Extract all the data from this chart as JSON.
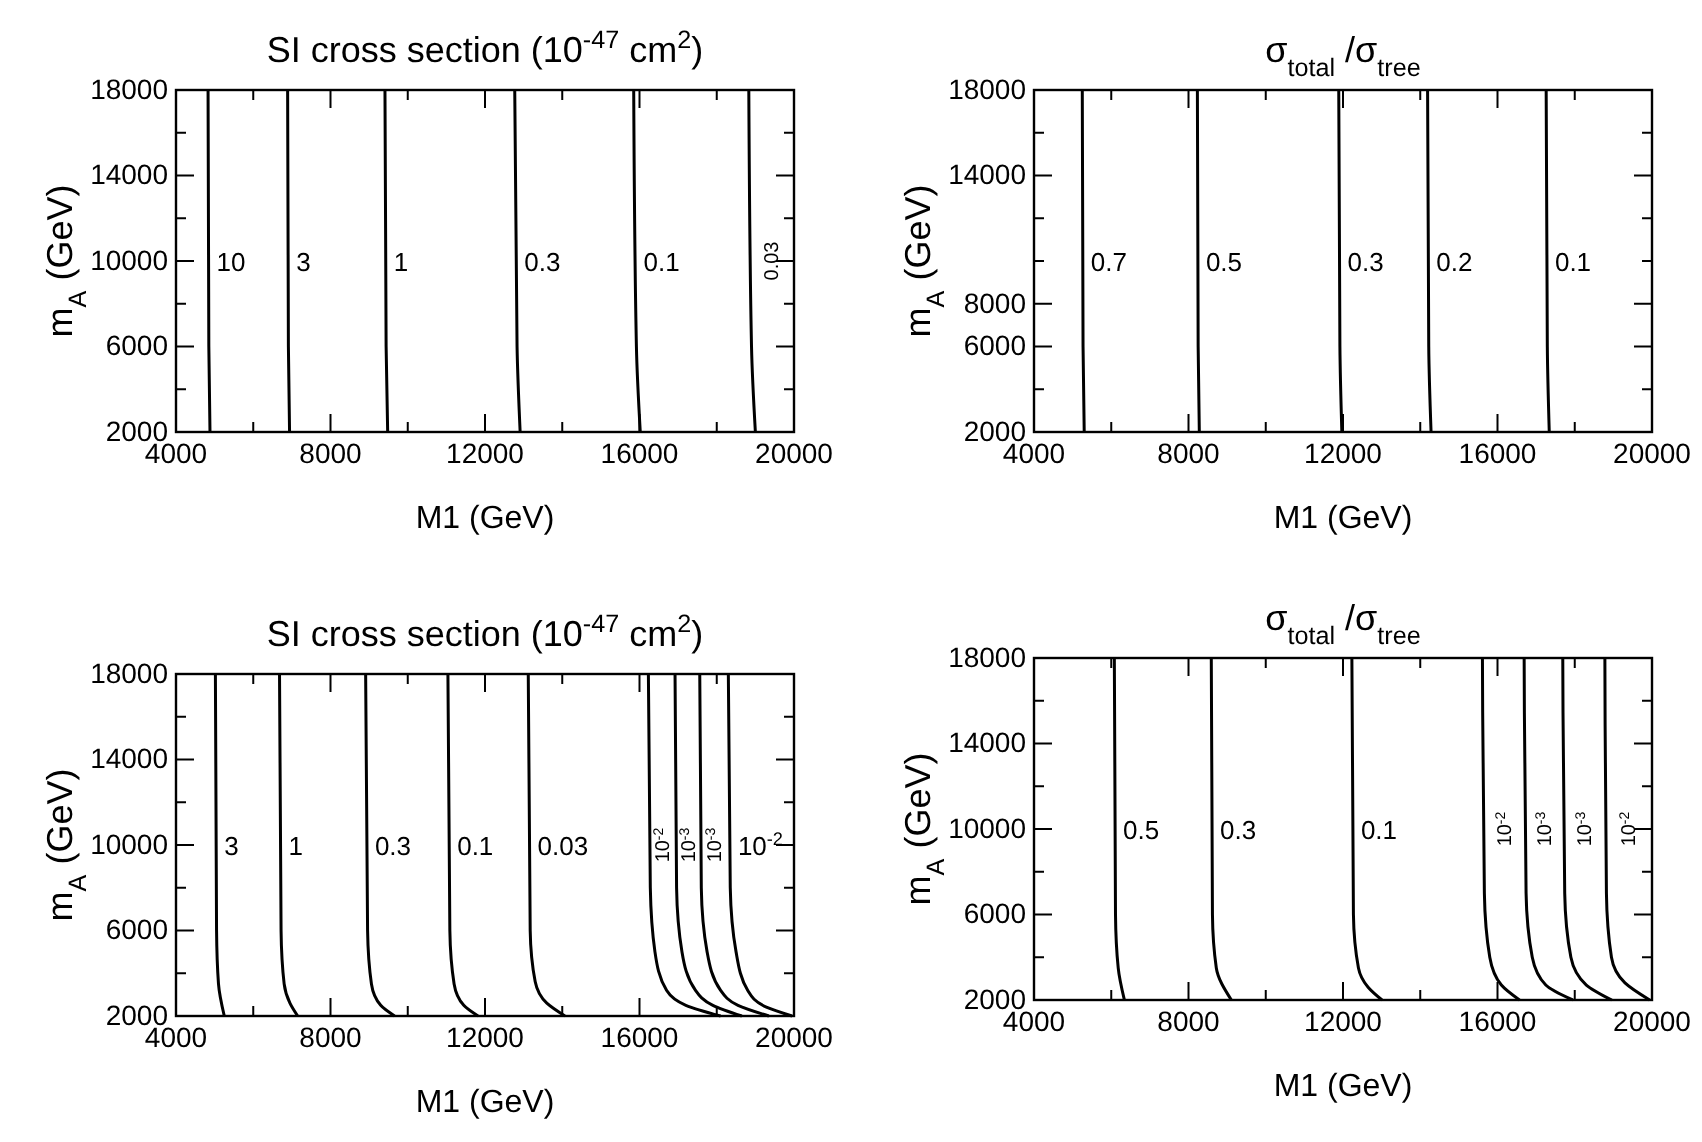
{
  "chart_data": [
    {
      "type": "line",
      "title": "SI cross section (10$^{-47}$ cm$^{2}$)",
      "xlabel": "M1 (GeV)",
      "ylabel": "m$_{A}$ (GeV)",
      "xlim": [
        4000,
        20000
      ],
      "ylim": [
        2000,
        18000
      ],
      "xticks": [
        4000,
        {
          "value": 6000,
          "label": null
        },
        8000,
        {
          "value": 10000,
          "label": null
        },
        12000,
        {
          "value": 14000,
          "label": null
        },
        16000,
        {
          "value": 18000,
          "label": null
        },
        20000
      ],
      "yticks": [
        2000,
        {
          "value": 4000,
          "label": null
        },
        6000,
        {
          "value": 8000,
          "label": null
        },
        10000,
        {
          "value": 12000,
          "label": null
        },
        14000,
        {
          "value": 16000,
          "label": null
        },
        18000
      ],
      "series": [
        {
          "name": "10",
          "color": "#000000",
          "x": [
            4830,
            4850,
            4880
          ],
          "values": [
            18000,
            6000,
            2000
          ]
        },
        {
          "name": "3",
          "color": "#000000",
          "x": [
            6890,
            6910,
            6940
          ],
          "values": [
            18000,
            6000,
            2000
          ]
        },
        {
          "name": "1",
          "color": "#000000",
          "x": [
            9410,
            9440,
            9480
          ],
          "values": [
            18000,
            6000,
            2000
          ]
        },
        {
          "name": "0.3",
          "color": "#000000",
          "x": [
            12770,
            12830,
            12910
          ],
          "values": [
            18000,
            6000,
            2000
          ]
        },
        {
          "name": "0.1",
          "color": "#000000",
          "x": [
            15850,
            15920,
            16020
          ],
          "values": [
            18000,
            6000,
            2000
          ]
        },
        {
          "name": "0.03",
          "color": "#000000",
          "x": [
            18830,
            18900,
            19000
          ],
          "values": [
            18000,
            6000,
            2000
          ]
        }
      ]
    },
    {
      "type": "line",
      "title": "σ$_{total}$ /σ$_{tree}$",
      "xlabel": "M1 (GeV)",
      "ylabel": "m$_{A}$ (GeV)",
      "xlim": [
        4000,
        20000
      ],
      "ylim": [
        2000,
        18000
      ],
      "xticks": [
        4000,
        {
          "value": 6000,
          "label": null
        },
        8000,
        {
          "value": 10000,
          "label": null
        },
        12000,
        {
          "value": 14000,
          "label": null
        },
        16000,
        {
          "value": 18000,
          "label": null
        },
        20000
      ],
      "yticks": [
        2000,
        {
          "value": 4000,
          "label": null
        },
        6000,
        8000,
        {
          "value": 10000,
          "label": null
        },
        {
          "value": 12000,
          "label": null
        },
        14000,
        {
          "value": 16000,
          "label": null
        },
        18000
      ],
      "series": [
        {
          "name": "0.7",
          "color": "#000000",
          "x": [
            5250,
            5270,
            5300
          ],
          "values": [
            18000,
            6000,
            2000
          ]
        },
        {
          "name": "0.5",
          "color": "#000000",
          "x": [
            8230,
            8250,
            8280
          ],
          "values": [
            18000,
            6000,
            2000
          ]
        },
        {
          "name": "0.3",
          "color": "#000000",
          "x": [
            11890,
            11920,
            11970
          ],
          "values": [
            18000,
            6000,
            2000
          ]
        },
        {
          "name": "0.2",
          "color": "#000000",
          "x": [
            14190,
            14220,
            14280
          ],
          "values": [
            18000,
            6000,
            2000
          ]
        },
        {
          "name": "0.1",
          "color": "#000000",
          "x": [
            17260,
            17290,
            17340
          ],
          "values": [
            18000,
            6000,
            2000
          ]
        }
      ]
    },
    {
      "type": "line",
      "title": "SI cross section (10$^{-47}$ cm$^{2}$)",
      "xlabel": "M1 (GeV)",
      "ylabel": "m$_{A}$ (GeV)",
      "xlim": [
        4000,
        20000
      ],
      "ylim": [
        2000,
        18000
      ],
      "xticks": [
        4000,
        {
          "value": 6000,
          "label": null
        },
        8000,
        {
          "value": 10000,
          "label": null
        },
        12000,
        {
          "value": 14000,
          "label": null
        },
        16000,
        {
          "value": 18000,
          "label": null
        },
        20000
      ],
      "yticks": [
        2000,
        {
          "value": 4000,
          "label": null
        },
        6000,
        {
          "value": 8000,
          "label": null
        },
        10000,
        {
          "value": 12000,
          "label": null
        },
        14000,
        {
          "value": 16000,
          "label": null
        },
        18000
      ],
      "series": [
        {
          "name": "3",
          "color": "#000000",
          "x": [
            5020,
            5050,
            5100,
            5250
          ],
          "values": [
            18000,
            6000,
            3500,
            2000
          ]
        },
        {
          "name": "1",
          "color": "#000000",
          "x": [
            6680,
            6720,
            6800,
            6950,
            7150
          ],
          "values": [
            18000,
            6000,
            3500,
            2600,
            2000
          ]
        },
        {
          "name": "0.3",
          "color": "#000000",
          "x": [
            8910,
            8960,
            9060,
            9300,
            9660
          ],
          "values": [
            18000,
            6000,
            3500,
            2500,
            2000
          ]
        },
        {
          "name": "0.1",
          "color": "#000000",
          "x": [
            11040,
            11090,
            11200,
            11450,
            11820
          ],
          "values": [
            18000,
            6000,
            3500,
            2500,
            2000
          ]
        },
        {
          "name": "0.03",
          "color": "#000000",
          "x": [
            13120,
            13170,
            13300,
            13600,
            14070
          ],
          "values": [
            18000,
            6000,
            3600,
            2600,
            2000
          ]
        },
        {
          "name": "10$^{-2}$",
          "color": "#000000",
          "x": [
            16230,
            16280,
            16400,
            16700,
            17200,
            18100
          ],
          "values": [
            18000,
            8000,
            5000,
            3200,
            2500,
            2000
          ]
        },
        {
          "name": "10$^{-3}$",
          "color": "#000000",
          "x": [
            16920,
            16960,
            17100,
            17450,
            17900,
            18650
          ],
          "values": [
            18000,
            8000,
            5000,
            3200,
            2500,
            2000
          ]
        },
        {
          "name": "10$^{-3}$",
          "color": "#000000",
          "x": [
            17560,
            17600,
            17750,
            18100,
            18550,
            19350
          ],
          "values": [
            18000,
            8000,
            5000,
            3200,
            2500,
            2000
          ]
        },
        {
          "name": "10$^{-2}$",
          "color": "#000000",
          "x": [
            18300,
            18350,
            18500,
            18800,
            19300,
            19950
          ],
          "values": [
            18000,
            8000,
            5000,
            3200,
            2400,
            2000
          ]
        }
      ]
    },
    {
      "type": "line",
      "title": "σ$_{total}$ /σ$_{tree}$",
      "xlabel": "M1 (GeV)",
      "ylabel": "m$_{A}$ (GeV)",
      "xlim": [
        4000,
        20000
      ],
      "ylim": [
        2000,
        18000
      ],
      "xticks": [
        4000,
        {
          "value": 6000,
          "label": null
        },
        8000,
        {
          "value": 10000,
          "label": null
        },
        12000,
        {
          "value": 14000,
          "label": null
        },
        16000,
        {
          "value": 18000,
          "label": null
        },
        20000
      ],
      "yticks": [
        2000,
        {
          "value": 4000,
          "label": null
        },
        6000,
        {
          "value": 8000,
          "label": null
        },
        10000,
        {
          "value": 12000,
          "label": null
        },
        14000,
        {
          "value": 16000,
          "label": null
        },
        18000
      ],
      "series": [
        {
          "name": "0.5",
          "color": "#000000",
          "x": [
            6080,
            6110,
            6180,
            6340
          ],
          "values": [
            18000,
            6000,
            3500,
            2000
          ]
        },
        {
          "name": "0.3",
          "color": "#000000",
          "x": [
            8590,
            8620,
            8720,
            9110
          ],
          "values": [
            18000,
            6000,
            3500,
            2000
          ]
        },
        {
          "name": "0.1",
          "color": "#000000",
          "x": [
            12230,
            12270,
            12400,
            12650,
            13010
          ],
          "values": [
            18000,
            6000,
            3500,
            2600,
            2000
          ]
        },
        {
          "name": "10$^{-2}$",
          "color": "#000000",
          "x": [
            15610,
            15660,
            15800,
            16100,
            16570
          ],
          "values": [
            18000,
            7000,
            4000,
            2700,
            2000
          ]
        },
        {
          "name": "10$^{-3}$",
          "color": "#000000",
          "x": [
            16690,
            16740,
            16900,
            17250,
            17950
          ],
          "values": [
            18000,
            7000,
            4000,
            2700,
            2000
          ]
        },
        {
          "name": "10$^{-3}$",
          "color": "#000000",
          "x": [
            17690,
            17740,
            17900,
            18300,
            18960
          ],
          "values": [
            18000,
            7000,
            4000,
            2700,
            2000
          ]
        },
        {
          "name": "10$^{-2}$",
          "color": "#000000",
          "x": [
            18780,
            18820,
            18950,
            19300,
            19940
          ],
          "values": [
            18000,
            7000,
            4000,
            2800,
            2000
          ]
        }
      ]
    }
  ]
}
